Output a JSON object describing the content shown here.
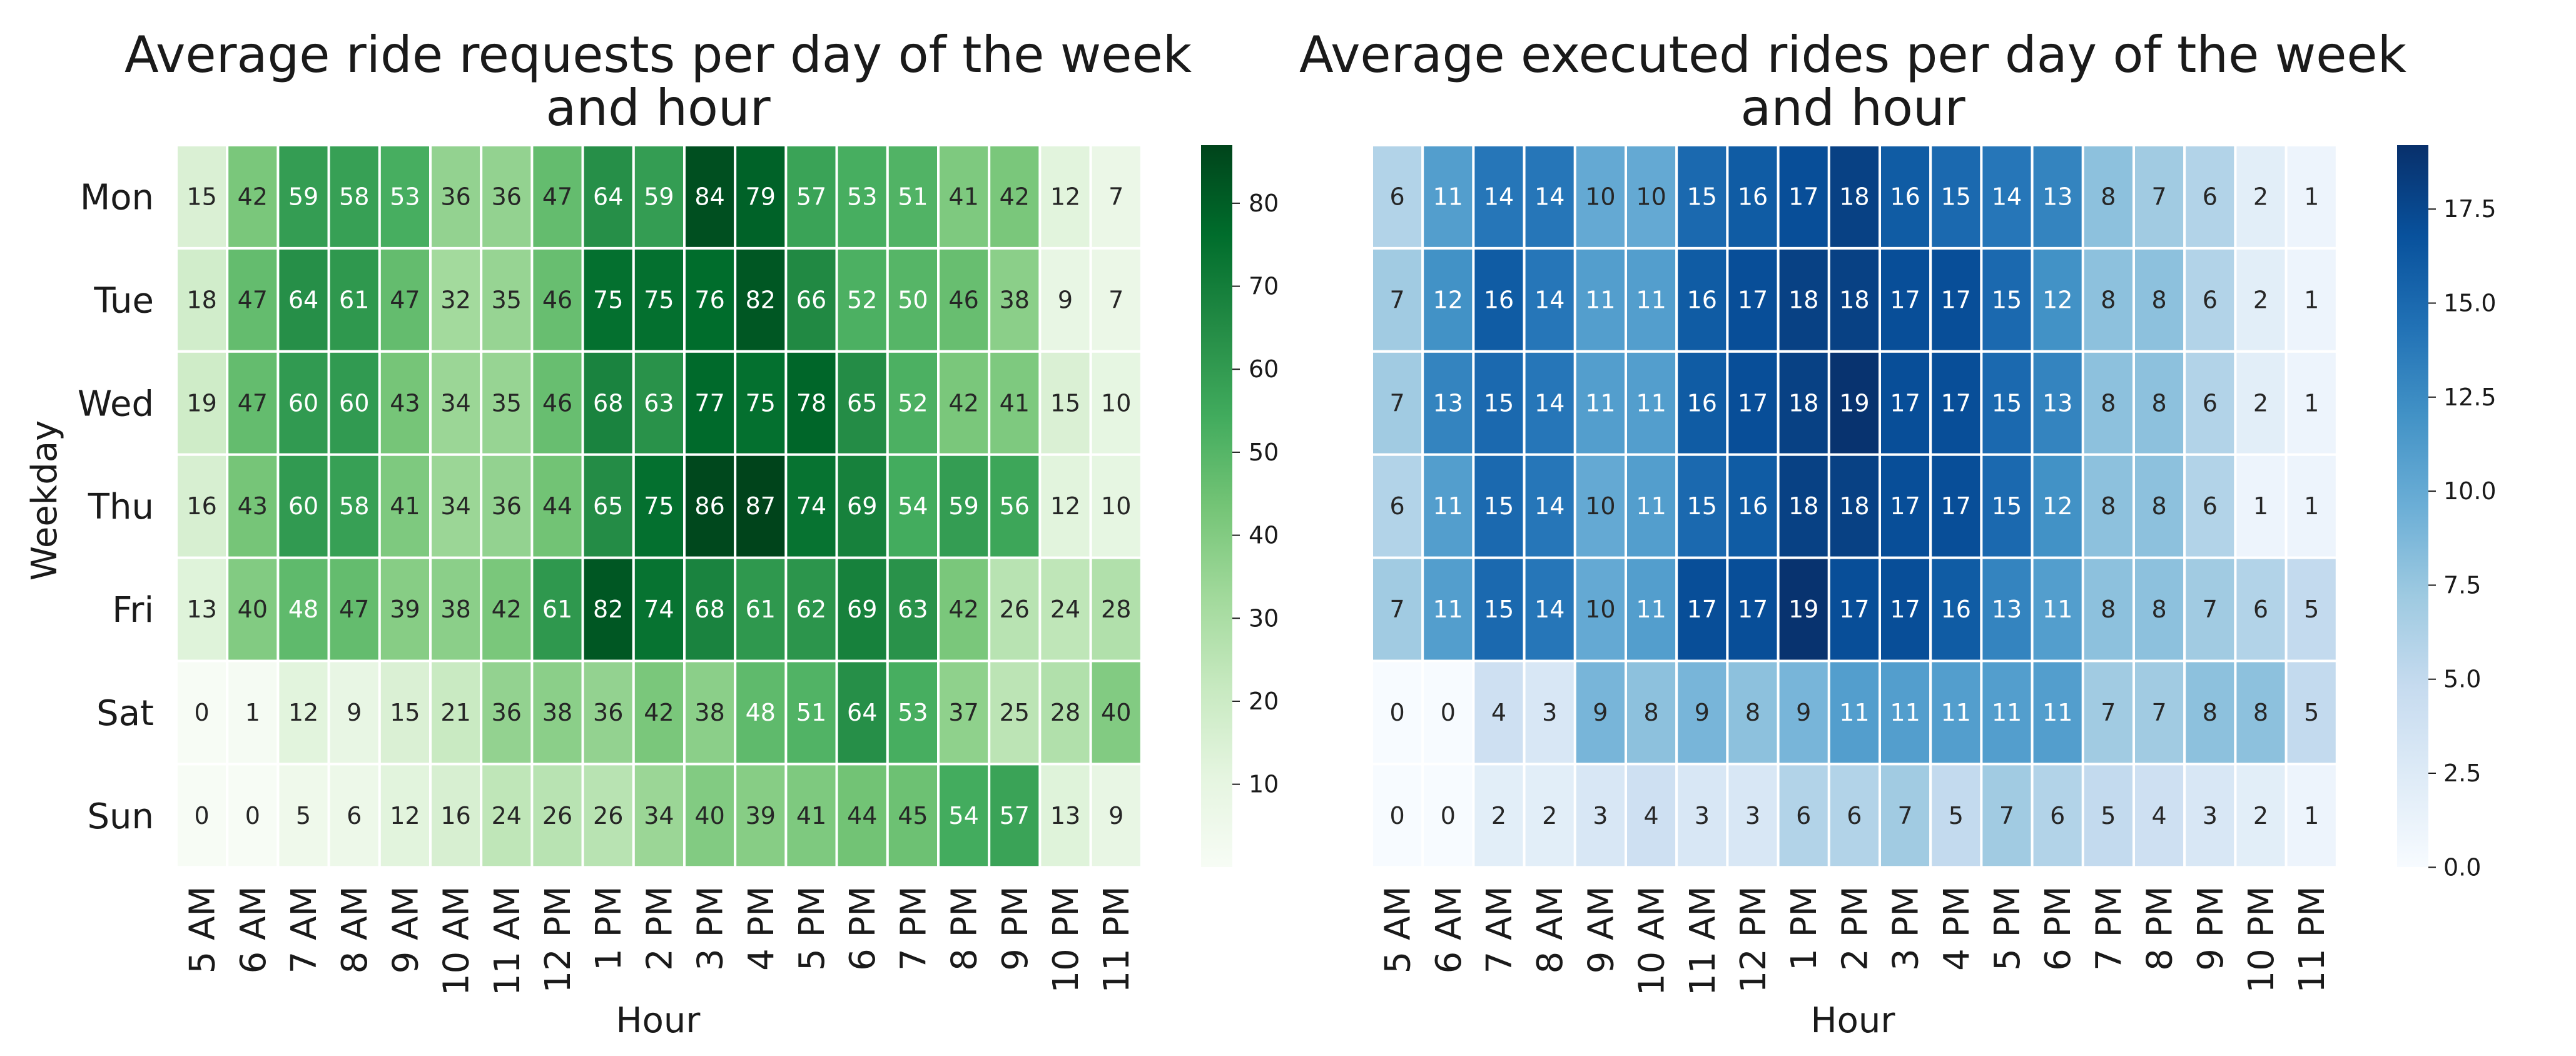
{
  "chart_data": [
    {
      "type": "heatmap",
      "title_lines": [
        "Average ride requests per day of the week",
        "and hour"
      ],
      "xlabel": "Hour",
      "ylabel": "Weekday",
      "x_categories": [
        "5 AM",
        "6 AM",
        "7 AM",
        "8 AM",
        "9 AM",
        "10 AM",
        "11 AM",
        "12 PM",
        "1 PM",
        "2 PM",
        "3 PM",
        "4 PM",
        "5 PM",
        "6 PM",
        "7 PM",
        "8 PM",
        "9 PM",
        "10 PM",
        "11 PM"
      ],
      "y_categories": [
        "Mon",
        "Tue",
        "Wed",
        "Thu",
        "Fri",
        "Sat",
        "Sun"
      ],
      "values": [
        [
          15,
          42,
          59,
          58,
          53,
          36,
          36,
          47,
          64,
          59,
          84,
          79,
          57,
          53,
          51,
          41,
          42,
          12,
          7
        ],
        [
          18,
          47,
          64,
          61,
          47,
          32,
          35,
          46,
          75,
          75,
          76,
          82,
          66,
          52,
          50,
          46,
          38,
          9,
          7
        ],
        [
          19,
          47,
          60,
          60,
          43,
          34,
          35,
          46,
          68,
          63,
          77,
          75,
          78,
          65,
          52,
          42,
          41,
          15,
          10
        ],
        [
          16,
          43,
          60,
          58,
          41,
          34,
          36,
          44,
          65,
          75,
          86,
          87,
          74,
          69,
          54,
          59,
          56,
          12,
          10
        ],
        [
          13,
          40,
          48,
          47,
          39,
          38,
          42,
          61,
          82,
          74,
          68,
          61,
          62,
          69,
          63,
          42,
          26,
          24,
          28
        ],
        [
          0,
          1,
          12,
          9,
          15,
          21,
          36,
          38,
          36,
          42,
          38,
          48,
          51,
          64,
          53,
          37,
          25,
          28,
          40
        ],
        [
          0,
          0,
          5,
          6,
          12,
          16,
          24,
          26,
          26,
          34,
          40,
          39,
          41,
          44,
          45,
          54,
          57,
          13,
          9
        ]
      ],
      "colormap": "Greens",
      "color_range": [
        0,
        87
      ],
      "colorbar_ticks": [
        "10",
        "20",
        "30",
        "40",
        "50",
        "60",
        "70",
        "80"
      ]
    },
    {
      "type": "heatmap",
      "title_lines": [
        "Average executed rides per day of the week",
        "and hour"
      ],
      "xlabel": "Hour",
      "ylabel": "",
      "x_categories": [
        "5 AM",
        "6 AM",
        "7 AM",
        "8 AM",
        "9 AM",
        "10 AM",
        "11 AM",
        "12 PM",
        "1 PM",
        "2 PM",
        "3 PM",
        "4 PM",
        "5 PM",
        "6 PM",
        "7 PM",
        "8 PM",
        "9 PM",
        "10 PM",
        "11 PM"
      ],
      "y_categories": [],
      "values": [
        [
          6,
          11,
          14,
          14,
          10,
          10,
          15,
          16,
          17,
          18,
          16,
          15,
          14,
          13,
          8,
          7,
          6,
          2,
          1
        ],
        [
          7,
          12,
          16,
          14,
          11,
          11,
          16,
          17,
          18,
          18,
          17,
          17,
          15,
          12,
          8,
          8,
          6,
          2,
          1
        ],
        [
          7,
          13,
          15,
          14,
          11,
          11,
          16,
          17,
          18,
          19,
          17,
          17,
          15,
          13,
          8,
          8,
          6,
          2,
          1
        ],
        [
          6,
          11,
          15,
          14,
          10,
          11,
          15,
          16,
          18,
          18,
          17,
          17,
          15,
          12,
          8,
          8,
          6,
          1,
          1
        ],
        [
          7,
          11,
          15,
          14,
          10,
          11,
          17,
          17,
          19,
          17,
          17,
          16,
          13,
          11,
          8,
          8,
          7,
          6,
          5
        ],
        [
          0,
          0,
          4,
          3,
          9,
          8,
          9,
          8,
          9,
          11,
          11,
          11,
          11,
          11,
          7,
          7,
          8,
          8,
          5
        ],
        [
          0,
          0,
          2,
          2,
          3,
          4,
          3,
          3,
          6,
          6,
          7,
          5,
          7,
          6,
          5,
          4,
          3,
          2,
          1
        ]
      ],
      "colormap": "Blues",
      "color_range": [
        0,
        19.2
      ],
      "colorbar_ticks": [
        "0.0",
        "2.5",
        "5.0",
        "7.5",
        "10.0",
        "12.5",
        "15.0",
        "17.5"
      ]
    }
  ]
}
